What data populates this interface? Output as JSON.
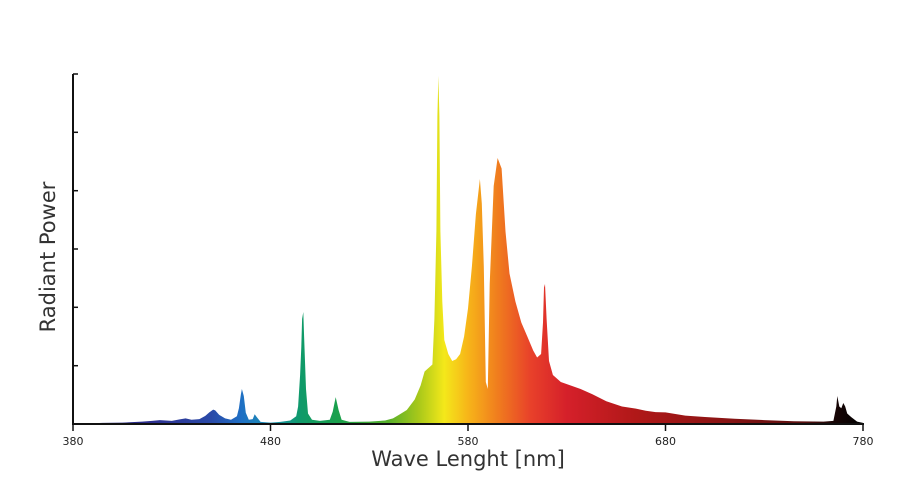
{
  "chart_data": {
    "type": "area",
    "title": "",
    "xlabel": "Wave Lenght [nm]",
    "ylabel": "Radiant Power",
    "xlim": [
      380,
      780
    ],
    "ylim": [
      0,
      1
    ],
    "x_ticks": [
      380,
      480,
      580,
      680,
      780
    ],
    "y_ticks_labeled": false,
    "y_tick_count": 6,
    "grid": false,
    "legend": "none",
    "fill": "wavelength-colored spectrum",
    "series": [
      {
        "points": [
          [
            380,
            0.0
          ],
          [
            395,
            0.003
          ],
          [
            405,
            0.004
          ],
          [
            415,
            0.007
          ],
          [
            420,
            0.009
          ],
          [
            424,
            0.011
          ],
          [
            430,
            0.009
          ],
          [
            434,
            0.013
          ],
          [
            437,
            0.016
          ],
          [
            440,
            0.012
          ],
          [
            444,
            0.014
          ],
          [
            447,
            0.023
          ],
          [
            449,
            0.033
          ],
          [
            451,
            0.041
          ],
          [
            452,
            0.039
          ],
          [
            454,
            0.026
          ],
          [
            457,
            0.016
          ],
          [
            460,
            0.012
          ],
          [
            463,
            0.022
          ],
          [
            464,
            0.045
          ],
          [
            465,
            0.085
          ],
          [
            465.5,
            0.1
          ],
          [
            466.5,
            0.08
          ],
          [
            467.5,
            0.032
          ],
          [
            469,
            0.012
          ],
          [
            471,
            0.014
          ],
          [
            472,
            0.028
          ],
          [
            473,
            0.02
          ],
          [
            475,
            0.006
          ],
          [
            480,
            0.004
          ],
          [
            485,
            0.006
          ],
          [
            490,
            0.01
          ],
          [
            493,
            0.022
          ],
          [
            494,
            0.05
          ],
          [
            495,
            0.14
          ],
          [
            495.6,
            0.22
          ],
          [
            496,
            0.3
          ],
          [
            496.6,
            0.32
          ],
          [
            497,
            0.25
          ],
          [
            498,
            0.1
          ],
          [
            499,
            0.03
          ],
          [
            501,
            0.012
          ],
          [
            505,
            0.009
          ],
          [
            510,
            0.012
          ],
          [
            511.5,
            0.035
          ],
          [
            513,
            0.077
          ],
          [
            514.5,
            0.04
          ],
          [
            516,
            0.012
          ],
          [
            520,
            0.006
          ],
          [
            530,
            0.007
          ],
          [
            538,
            0.01
          ],
          [
            542,
            0.016
          ],
          [
            545,
            0.026
          ],
          [
            549,
            0.04
          ],
          [
            553,
            0.07
          ],
          [
            556,
            0.11
          ],
          [
            558,
            0.15
          ],
          [
            560,
            0.16
          ],
          [
            562,
            0.17
          ],
          [
            563,
            0.3
          ],
          [
            564,
            0.55
          ],
          [
            564.5,
            0.88
          ],
          [
            565,
            0.995
          ],
          [
            565.5,
            0.88
          ],
          [
            566,
            0.55
          ],
          [
            567,
            0.35
          ],
          [
            568,
            0.24
          ],
          [
            570,
            0.2
          ],
          [
            572,
            0.18
          ],
          [
            574,
            0.185
          ],
          [
            576,
            0.2
          ],
          [
            578,
            0.25
          ],
          [
            580,
            0.33
          ],
          [
            582,
            0.45
          ],
          [
            584,
            0.6
          ],
          [
            586,
            0.7
          ],
          [
            587,
            0.63
          ],
          [
            588,
            0.45
          ],
          [
            589,
            0.12
          ],
          [
            590,
            0.1
          ],
          [
            591,
            0.4
          ],
          [
            593,
            0.68
          ],
          [
            595,
            0.76
          ],
          [
            597,
            0.73
          ],
          [
            599,
            0.55
          ],
          [
            601,
            0.43
          ],
          [
            604,
            0.35
          ],
          [
            607,
            0.29
          ],
          [
            610,
            0.25
          ],
          [
            613,
            0.21
          ],
          [
            615,
            0.19
          ],
          [
            617,
            0.2
          ],
          [
            618,
            0.29
          ],
          [
            618.5,
            0.39
          ],
          [
            619,
            0.4
          ],
          [
            619.8,
            0.3
          ],
          [
            621,
            0.18
          ],
          [
            623,
            0.14
          ],
          [
            627,
            0.12
          ],
          [
            632,
            0.11
          ],
          [
            637,
            0.1
          ],
          [
            643,
            0.085
          ],
          [
            650,
            0.065
          ],
          [
            658,
            0.05
          ],
          [
            665,
            0.044
          ],
          [
            670,
            0.038
          ],
          [
            675,
            0.034
          ],
          [
            680,
            0.033
          ],
          [
            690,
            0.024
          ],
          [
            700,
            0.02
          ],
          [
            715,
            0.015
          ],
          [
            730,
            0.011
          ],
          [
            745,
            0.008
          ],
          [
            760,
            0.007
          ],
          [
            765,
            0.009
          ],
          [
            766.5,
            0.05
          ],
          [
            767,
            0.08
          ],
          [
            768,
            0.05
          ],
          [
            769,
            0.045
          ],
          [
            770,
            0.06
          ],
          [
            771,
            0.05
          ],
          [
            772,
            0.03
          ],
          [
            774,
            0.02
          ],
          [
            777,
            0.007
          ],
          [
            780,
            0.003
          ]
        ]
      }
    ]
  }
}
